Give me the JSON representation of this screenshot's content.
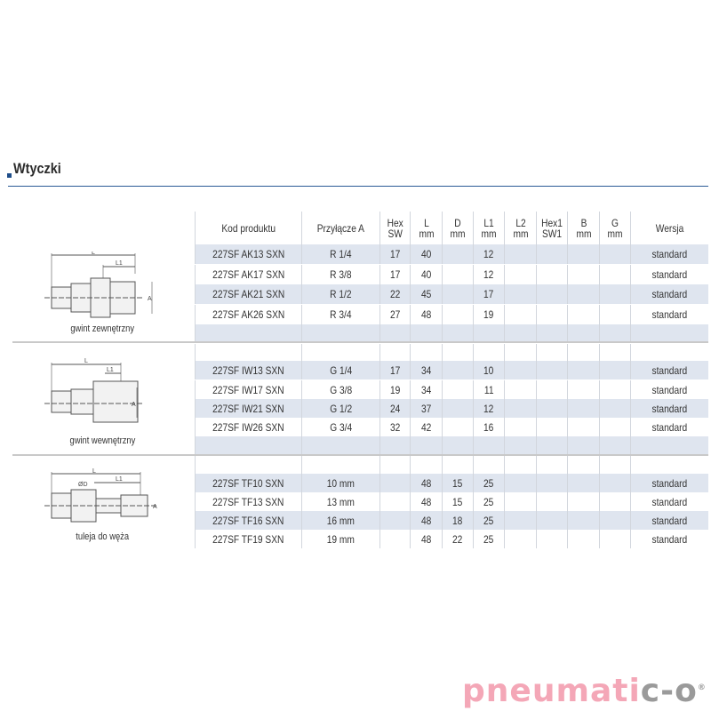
{
  "section_title": "Wtyczki",
  "columns": [
    "Kod produktu",
    "Przyłącze A",
    "Hex\nSW",
    "L\nmm",
    "D\nmm",
    "L1\nmm",
    "L2\nmm",
    "Hex1\nSW1",
    "B\nmm",
    "G\nmm",
    "Wersja"
  ],
  "groups": [
    {
      "caption": "gwint zewnętrzny",
      "rows": [
        [
          "227SF AK13 SXN",
          "R 1/4",
          "17",
          "40",
          "",
          "12",
          "",
          "",
          "",
          "",
          "standard"
        ],
        [
          "227SF AK17 SXN",
          "R 3/8",
          "17",
          "40",
          "",
          "12",
          "",
          "",
          "",
          "",
          "standard"
        ],
        [
          "227SF AK21 SXN",
          "R 1/2",
          "22",
          "45",
          "",
          "17",
          "",
          "",
          "",
          "",
          "standard"
        ],
        [
          "227SF AK26 SXN",
          "R 3/4",
          "27",
          "48",
          "",
          "19",
          "",
          "",
          "",
          "",
          "standard"
        ]
      ]
    },
    {
      "caption": "gwint wewnętrzny",
      "rows": [
        [
          "227SF IW13 SXN",
          "G 1/4",
          "17",
          "34",
          "",
          "10",
          "",
          "",
          "",
          "",
          "standard"
        ],
        [
          "227SF IW17 SXN",
          "G 3/8",
          "19",
          "34",
          "",
          "11",
          "",
          "",
          "",
          "",
          "standard"
        ],
        [
          "227SF IW21 SXN",
          "G 1/2",
          "24",
          "37",
          "",
          "12",
          "",
          "",
          "",
          "",
          "standard"
        ],
        [
          "227SF IW26 SXN",
          "G 3/4",
          "32",
          "42",
          "",
          "16",
          "",
          "",
          "",
          "",
          "standard"
        ]
      ]
    },
    {
      "caption": "tuleja do węża",
      "rows": [
        [
          "227SF TF10 SXN",
          "10 mm",
          "",
          "48",
          "15",
          "25",
          "",
          "",
          "",
          "",
          "standard"
        ],
        [
          "227SF TF13 SXN",
          "13 mm",
          "",
          "48",
          "15",
          "25",
          "",
          "",
          "",
          "",
          "standard"
        ],
        [
          "227SF TF16 SXN",
          "16 mm",
          "",
          "48",
          "18",
          "25",
          "",
          "",
          "",
          "",
          "standard"
        ],
        [
          "227SF TF19 SXN",
          "19 mm",
          "",
          "48",
          "22",
          "25",
          "",
          "",
          "",
          "",
          "standard"
        ]
      ]
    }
  ],
  "drawing_labels": {
    "L": "L",
    "L1": "L1",
    "A": "A",
    "D": "ØD"
  },
  "logo": {
    "text_main": "pneumati",
    "text_end": "c-o",
    "mark": "®"
  },
  "colors": {
    "accent": "#2a5a96",
    "row_shade": "#dfe5ef",
    "logo_pink": "#f4a7b7",
    "logo_gray": "#9a9a9a"
  }
}
